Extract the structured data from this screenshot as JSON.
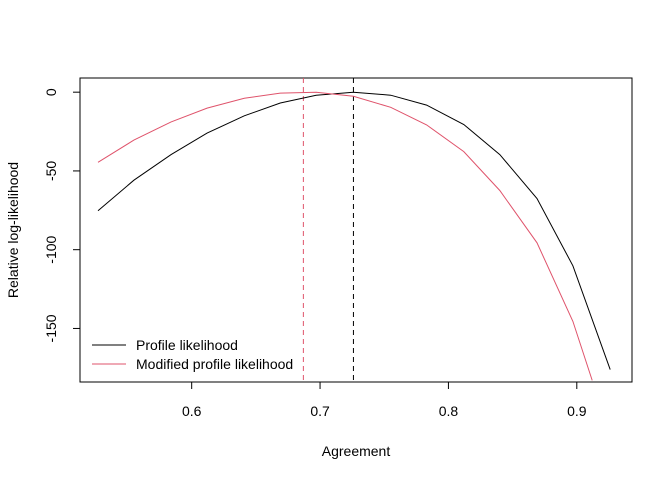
{
  "chart_data": {
    "type": "line",
    "title": "",
    "xlabel": "Agreement",
    "ylabel": "Relative log-likelihood",
    "xlim": [
      0.513,
      0.943
    ],
    "ylim": [
      -184,
      9
    ],
    "x_ticks": [
      0.6,
      0.7,
      0.8,
      0.9
    ],
    "x_tick_labels": [
      "0.6",
      "0.7",
      "0.8",
      "0.9"
    ],
    "y_ticks": [
      0,
      -50,
      -100,
      -150
    ],
    "y_tick_labels": [
      "0",
      "-50",
      "-100",
      "-150"
    ],
    "grid": false,
    "legend_position": "bottom-left",
    "series": [
      {
        "name": "Profile likelihood",
        "color": "#000000",
        "x": [
          0.527,
          0.555,
          0.584,
          0.612,
          0.641,
          0.669,
          0.697,
          0.726,
          0.755,
          0.783,
          0.812,
          0.84,
          0.869,
          0.897,
          0.926
        ],
        "y": [
          -75.3,
          -55.9,
          -39.6,
          -26.0,
          -15.0,
          -6.9,
          -1.9,
          0.0,
          -1.9,
          -8.2,
          -20.5,
          -39.6,
          -67.5,
          -110.2,
          -176.1
        ],
        "vline": 0.726
      },
      {
        "name": "Modified profile likelihood",
        "color": "#DF536B",
        "x": [
          0.527,
          0.555,
          0.584,
          0.612,
          0.641,
          0.669,
          0.697,
          0.726,
          0.755,
          0.783,
          0.812,
          0.84,
          0.869,
          0.897,
          0.912
        ],
        "y": [
          -44.5,
          -30.4,
          -18.9,
          -10.1,
          -3.9,
          -0.6,
          0.0,
          -2.6,
          -9.6,
          -20.8,
          -37.7,
          -62.4,
          -95.6,
          -145.5,
          -183.0
        ],
        "vline": 0.687
      }
    ]
  }
}
